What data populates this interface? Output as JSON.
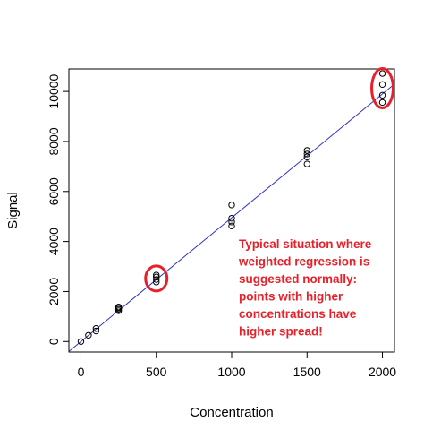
{
  "chart_data": {
    "type": "scatter",
    "title": "",
    "xlabel": "Concentration",
    "ylabel": "Signal",
    "xlim": [
      -80,
      2080
    ],
    "ylim": [
      -420,
      10900
    ],
    "xticks": [
      0,
      500,
      1000,
      1500,
      2000
    ],
    "yticks": [
      0,
      2000,
      4000,
      6000,
      8000,
      10000
    ],
    "grid": false,
    "points": [
      {
        "x": 0,
        "y": 0
      },
      {
        "x": 50,
        "y": 250
      },
      {
        "x": 100,
        "y": 420
      },
      {
        "x": 100,
        "y": 520
      },
      {
        "x": 250,
        "y": 1230
      },
      {
        "x": 250,
        "y": 1290
      },
      {
        "x": 250,
        "y": 1340
      },
      {
        "x": 250,
        "y": 1380
      },
      {
        "x": 500,
        "y": 2380
      },
      {
        "x": 500,
        "y": 2480
      },
      {
        "x": 500,
        "y": 2580
      },
      {
        "x": 500,
        "y": 2660
      },
      {
        "x": 1000,
        "y": 4620
      },
      {
        "x": 1000,
        "y": 4780
      },
      {
        "x": 1000,
        "y": 4930
      },
      {
        "x": 1000,
        "y": 5460
      },
      {
        "x": 1500,
        "y": 7100
      },
      {
        "x": 1500,
        "y": 7380
      },
      {
        "x": 1500,
        "y": 7500
      },
      {
        "x": 1500,
        "y": 7640
      },
      {
        "x": 2000,
        "y": 9560
      },
      {
        "x": 2000,
        "y": 9850
      },
      {
        "x": 2000,
        "y": 10280
      },
      {
        "x": 2000,
        "y": 10720
      }
    ],
    "fit_line": {
      "intercept": 0,
      "slope": 4.95,
      "color": "#3333cc"
    },
    "highlight_ellipses": [
      {
        "x": 500,
        "y": 2520,
        "color": "#e8202a"
      },
      {
        "x": 2000,
        "y": 10130,
        "color": "#e8202a"
      }
    ],
    "annotation": [
      "Typical situation where",
      "weighted regression is",
      "suggested normally:",
      "points with higher",
      "concentrations have",
      "higher spread!"
    ],
    "colors": {
      "points": "#000000",
      "line": "#3333cc",
      "annotation": "#e8202a"
    }
  }
}
